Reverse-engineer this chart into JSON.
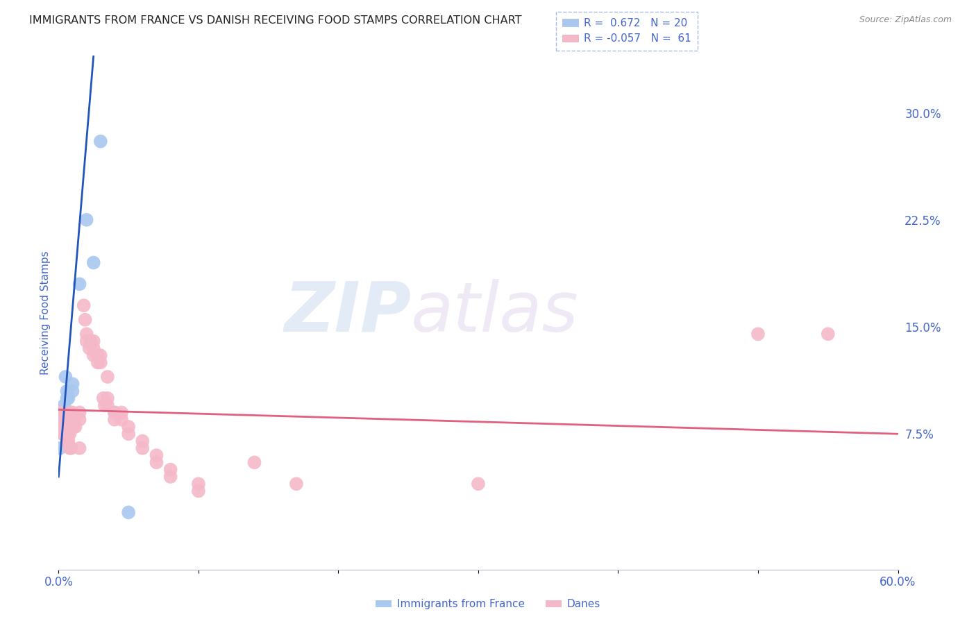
{
  "title": "IMMIGRANTS FROM FRANCE VS DANISH RECEIVING FOOD STAMPS CORRELATION CHART",
  "source": "Source: ZipAtlas.com",
  "ylabel": "Receiving Food Stamps",
  "yticks_right": [
    0.075,
    0.15,
    0.225,
    0.3
  ],
  "ytick_labels_right": [
    "7.5%",
    "15.0%",
    "22.5%",
    "30.0%"
  ],
  "legend_label_blue": "Immigrants from France",
  "legend_label_pink": "Danes",
  "blue_color": "#a8c8f0",
  "pink_color": "#f5b8c8",
  "blue_line_color": "#2255bb",
  "pink_line_color": "#e06080",
  "watermark_zip": "ZIP",
  "watermark_atlas": "atlas",
  "blue_dots": [
    [
      0.001,
      0.065
    ],
    [
      0.002,
      0.09
    ],
    [
      0.003,
      0.085
    ],
    [
      0.004,
      0.095
    ],
    [
      0.005,
      0.09
    ],
    [
      0.005,
      0.115
    ],
    [
      0.006,
      0.1
    ],
    [
      0.006,
      0.105
    ],
    [
      0.007,
      0.1
    ],
    [
      0.008,
      0.085
    ],
    [
      0.009,
      0.085
    ],
    [
      0.01,
      0.11
    ],
    [
      0.01,
      0.105
    ],
    [
      0.015,
      0.18
    ],
    [
      0.02,
      0.225
    ],
    [
      0.025,
      0.195
    ],
    [
      0.03,
      0.28
    ],
    [
      0.04,
      0.09
    ],
    [
      0.05,
      0.02
    ],
    [
      0.003,
      0.075
    ]
  ],
  "pink_dots": [
    [
      0.001,
      0.09
    ],
    [
      0.001,
      0.085
    ],
    [
      0.002,
      0.085
    ],
    [
      0.002,
      0.08
    ],
    [
      0.003,
      0.08
    ],
    [
      0.003,
      0.075
    ],
    [
      0.004,
      0.075
    ],
    [
      0.004,
      0.08
    ],
    [
      0.005,
      0.075
    ],
    [
      0.005,
      0.08
    ],
    [
      0.006,
      0.07
    ],
    [
      0.006,
      0.075
    ],
    [
      0.007,
      0.07
    ],
    [
      0.007,
      0.075
    ],
    [
      0.008,
      0.065
    ],
    [
      0.008,
      0.075
    ],
    [
      0.009,
      0.065
    ],
    [
      0.009,
      0.09
    ],
    [
      0.01,
      0.085
    ],
    [
      0.01,
      0.09
    ],
    [
      0.011,
      0.08
    ],
    [
      0.011,
      0.085
    ],
    [
      0.012,
      0.08
    ],
    [
      0.015,
      0.09
    ],
    [
      0.015,
      0.085
    ],
    [
      0.015,
      0.065
    ],
    [
      0.018,
      0.165
    ],
    [
      0.019,
      0.155
    ],
    [
      0.02,
      0.14
    ],
    [
      0.02,
      0.145
    ],
    [
      0.022,
      0.135
    ],
    [
      0.023,
      0.14
    ],
    [
      0.025,
      0.135
    ],
    [
      0.025,
      0.14
    ],
    [
      0.025,
      0.13
    ],
    [
      0.028,
      0.13
    ],
    [
      0.028,
      0.125
    ],
    [
      0.03,
      0.13
    ],
    [
      0.03,
      0.125
    ],
    [
      0.032,
      0.1
    ],
    [
      0.033,
      0.095
    ],
    [
      0.035,
      0.095
    ],
    [
      0.035,
      0.1
    ],
    [
      0.035,
      0.115
    ],
    [
      0.04,
      0.09
    ],
    [
      0.04,
      0.085
    ],
    [
      0.045,
      0.085
    ],
    [
      0.045,
      0.09
    ],
    [
      0.05,
      0.075
    ],
    [
      0.05,
      0.08
    ],
    [
      0.06,
      0.065
    ],
    [
      0.06,
      0.07
    ],
    [
      0.07,
      0.06
    ],
    [
      0.07,
      0.055
    ],
    [
      0.08,
      0.05
    ],
    [
      0.08,
      0.045
    ],
    [
      0.1,
      0.04
    ],
    [
      0.1,
      0.035
    ],
    [
      0.14,
      0.055
    ],
    [
      0.17,
      0.04
    ],
    [
      0.3,
      0.04
    ],
    [
      0.5,
      0.145
    ],
    [
      0.55,
      0.145
    ]
  ],
  "xlim": [
    0.0,
    0.6
  ],
  "ylim": [
    -0.02,
    0.34
  ],
  "background_color": "#ffffff",
  "grid_color": "#ddddee",
  "tick_label_color": "#4466cc"
}
